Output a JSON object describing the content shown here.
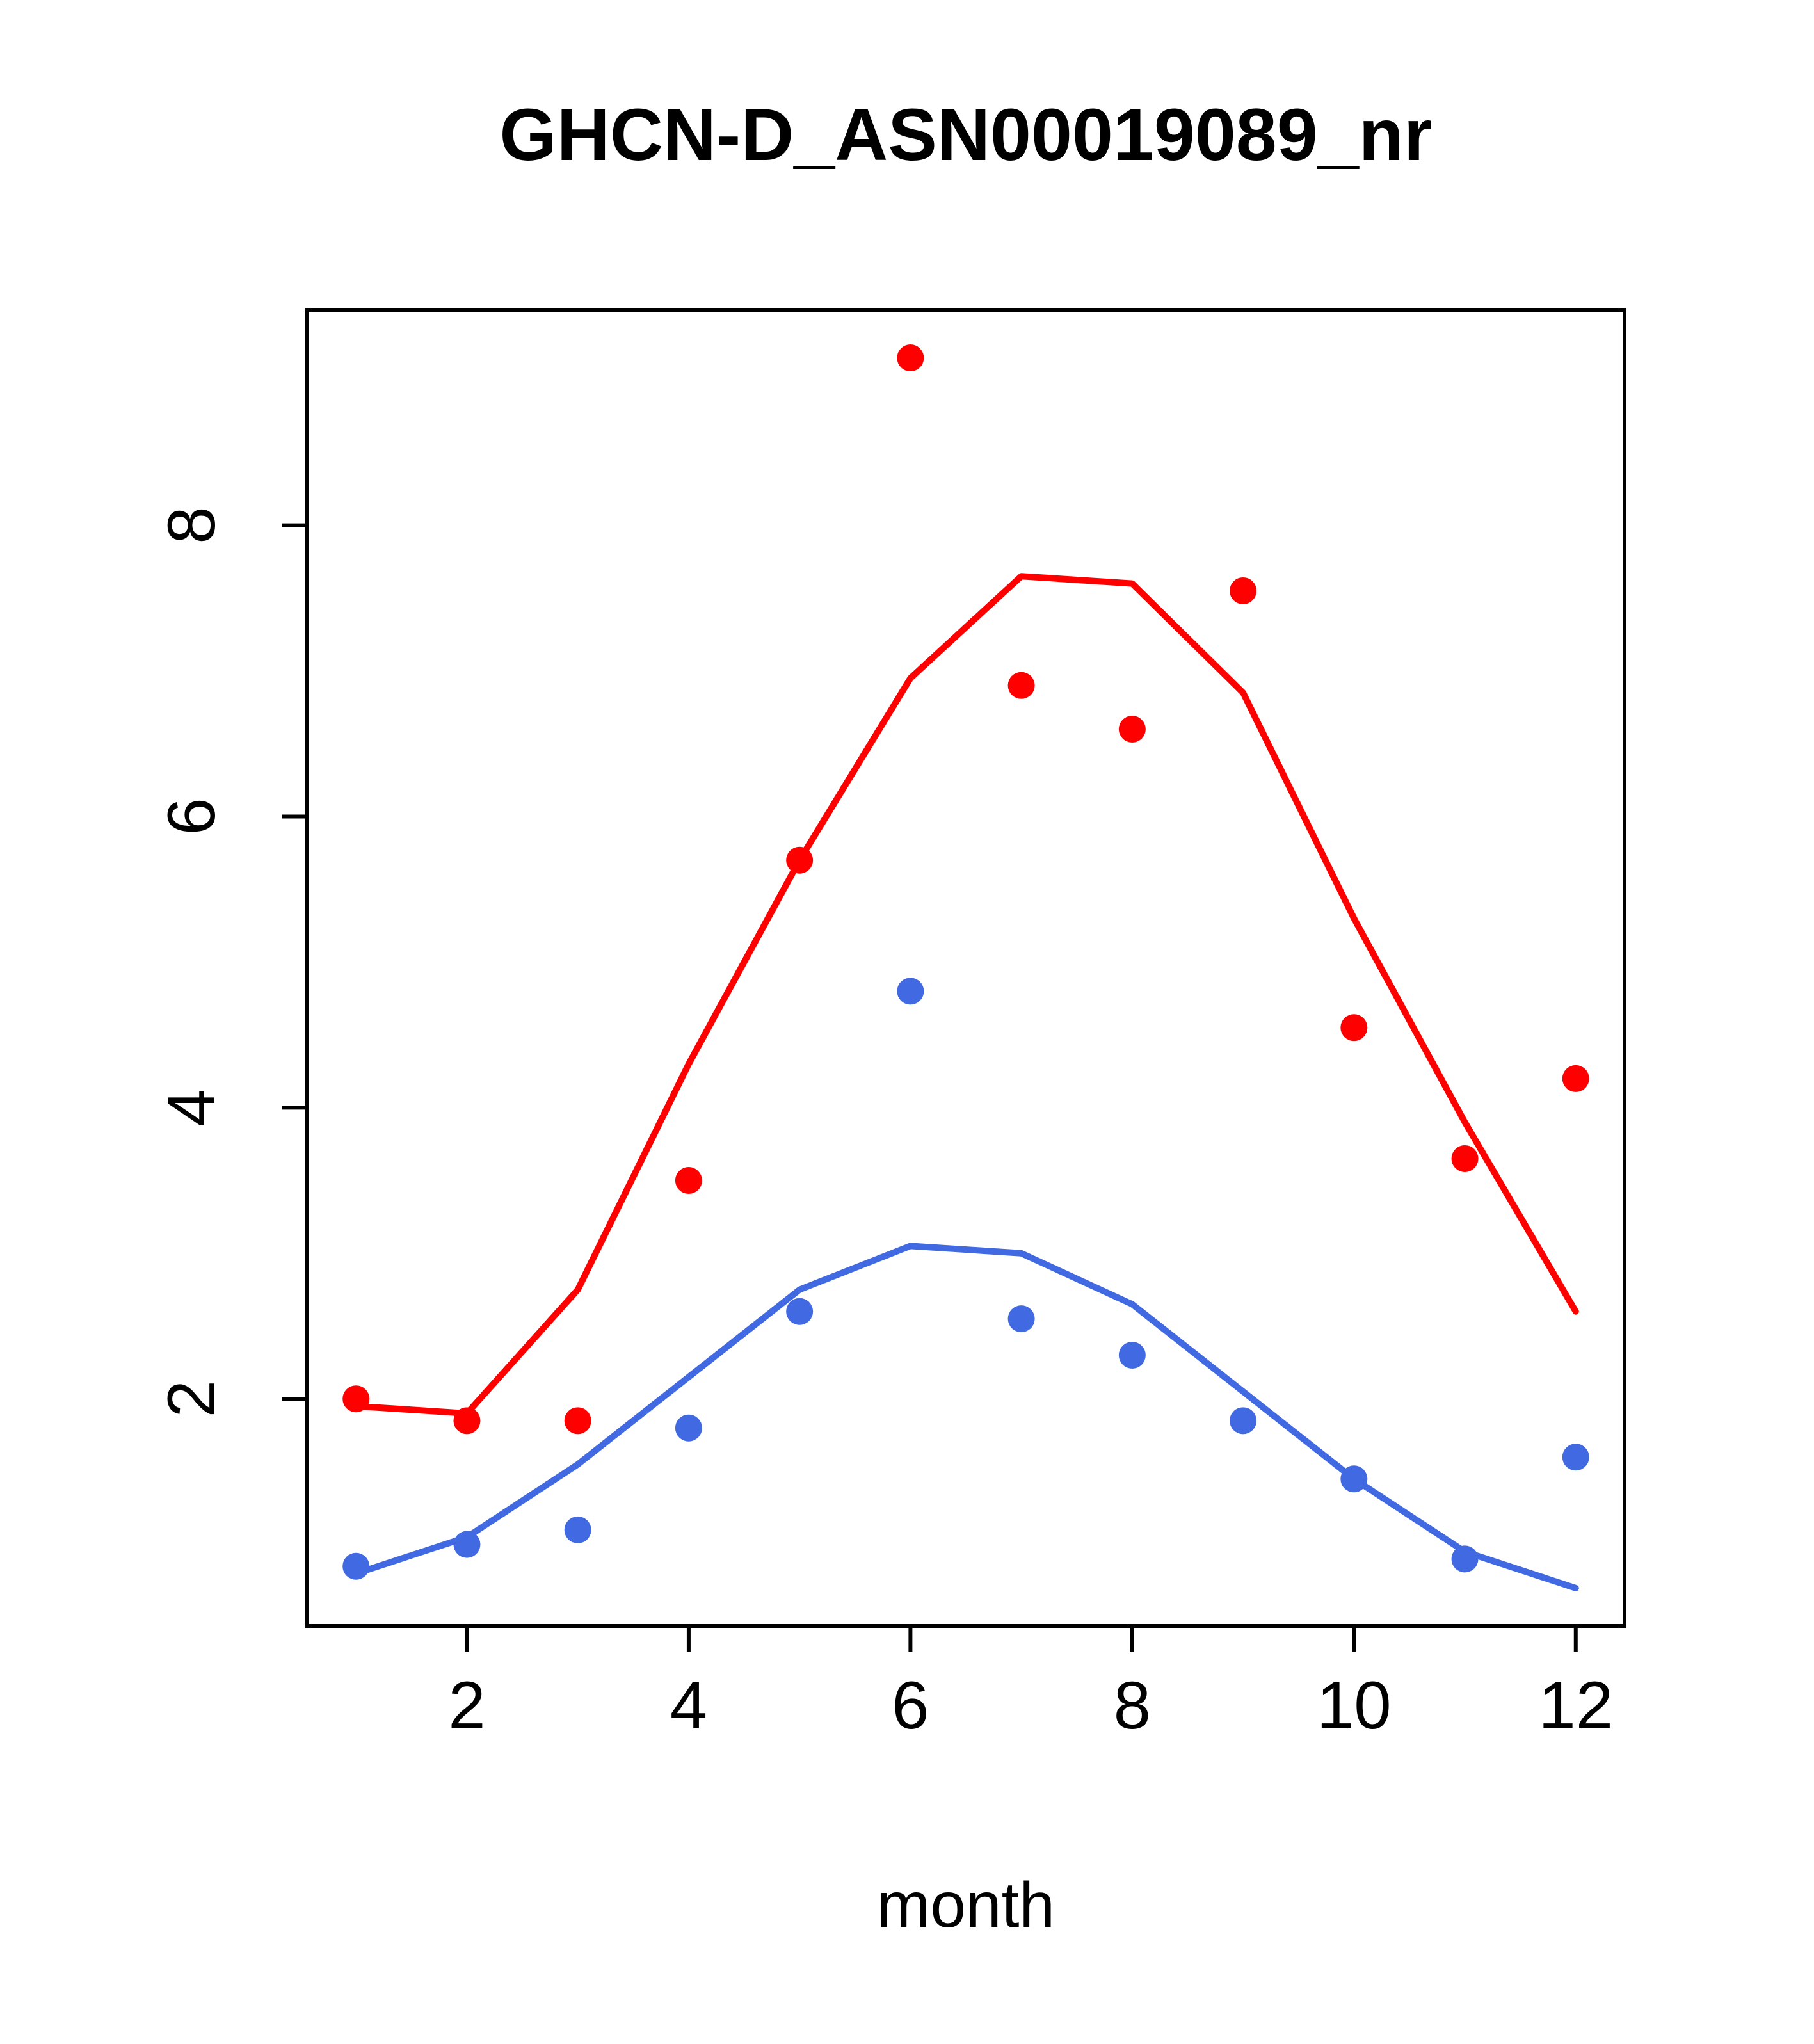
{
  "figure": {
    "title": "GHCN-D_ASN00019089_nr",
    "x_axis_label": "month"
  },
  "chart_data": {
    "type": "scatter",
    "title": "GHCN-D_ASN00019089_nr",
    "xlabel": "month",
    "ylabel": "",
    "x": [
      1,
      2,
      3,
      4,
      5,
      6,
      7,
      8,
      9,
      10,
      11,
      12
    ],
    "xlim": [
      0.56,
      12.44
    ],
    "ylim": [
      0.44,
      9.48
    ],
    "x_ticks": [
      2,
      4,
      6,
      8,
      10,
      12
    ],
    "y_ticks": [
      2,
      4,
      6,
      8
    ],
    "grid": false,
    "legend": "none",
    "colors": {
      "red": "#FF0000",
      "blue": "#4169E1"
    },
    "series": [
      {
        "name": "red-smooth-line",
        "style": "line",
        "color": "#FF0000",
        "values": [
          1.95,
          1.9,
          2.75,
          4.3,
          5.7,
          6.95,
          7.65,
          7.6,
          6.85,
          5.3,
          3.9,
          2.6
        ]
      },
      {
        "name": "blue-smooth-line",
        "style": "line",
        "color": "#4169E1",
        "values": [
          0.8,
          1.05,
          1.55,
          2.15,
          2.75,
          3.05,
          3.0,
          2.65,
          2.05,
          1.45,
          0.95,
          0.7
        ]
      },
      {
        "name": "red-monthly-points",
        "style": "points",
        "color": "#FF0000",
        "values": [
          2.0,
          1.85,
          1.85,
          3.5,
          5.7,
          9.15,
          6.9,
          6.6,
          7.55,
          4.55,
          3.65,
          4.2
        ]
      },
      {
        "name": "blue-monthly-points",
        "style": "points",
        "color": "#4169E1",
        "values": [
          0.85,
          1.0,
          1.1,
          1.8,
          2.6,
          4.8,
          2.55,
          2.3,
          1.85,
          1.45,
          0.9,
          1.6
        ]
      }
    ]
  }
}
